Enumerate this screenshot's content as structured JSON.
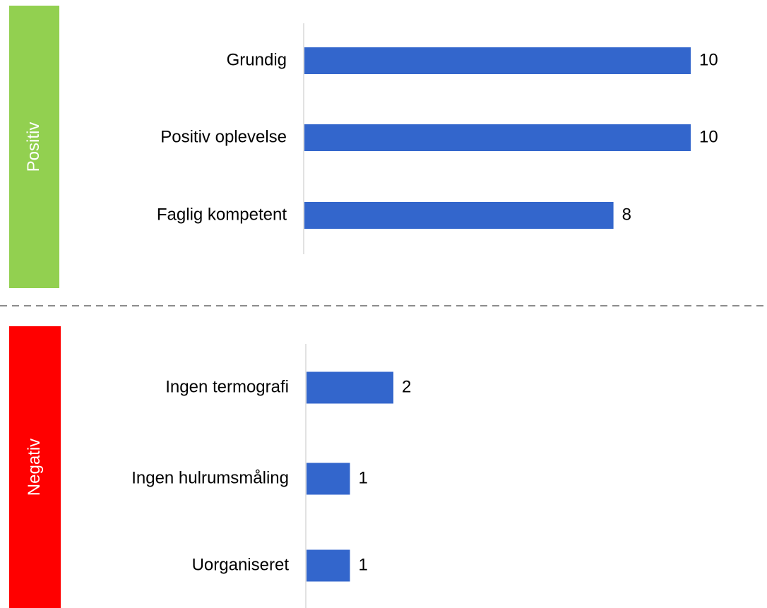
{
  "chart_data": [
    {
      "type": "bar",
      "label": "Positiv",
      "label_color": "#92d050",
      "color": "#3366cc",
      "categories": [
        "Grundig",
        "Positiv oplevelse",
        "Faglig kompetent"
      ],
      "values": [
        10,
        10,
        8
      ]
    },
    {
      "type": "bar",
      "label": "Negativ",
      "label_color": "#ff0000",
      "color": "#3366cc",
      "categories": [
        "Ingen termografi",
        "Ingen hulrumsmåling",
        "Uorganiseret"
      ],
      "values": [
        2,
        1,
        1
      ]
    }
  ]
}
